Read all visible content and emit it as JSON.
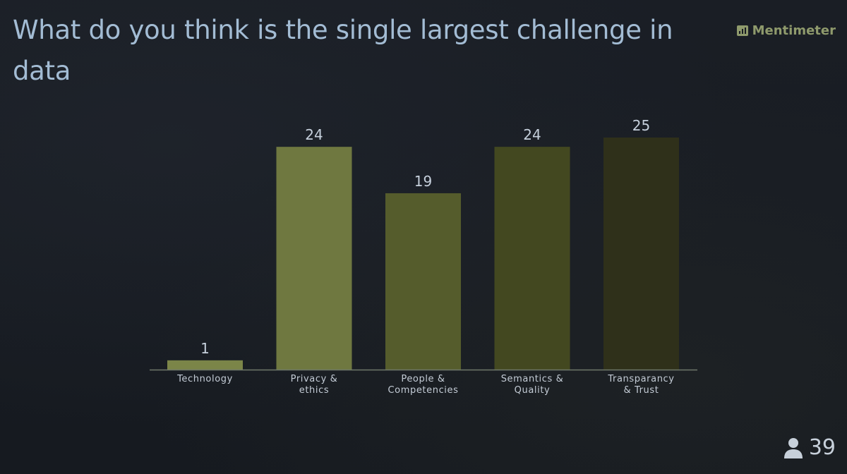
{
  "slide": {
    "title": "What do you think is the single largest challenge in data",
    "brand": "Mentimeter",
    "participant_count": "39",
    "icons": {
      "brand": "bar-chart-logo-icon",
      "participants": "person-icon"
    }
  },
  "chart_data": {
    "type": "bar",
    "title": "",
    "xlabel": "",
    "ylabel": "",
    "categories": [
      [
        "Technology"
      ],
      [
        "Privacy &",
        "ethics"
      ],
      [
        "People &",
        "Competencies"
      ],
      [
        "Semantics &",
        "Quality"
      ],
      [
        "Transparancy",
        "& Trust"
      ]
    ],
    "values": [
      1,
      24,
      19,
      24,
      25
    ],
    "colors": [
      "#7b8548",
      "#6f7840",
      "#555c2c",
      "#434820",
      "#2f301a"
    ],
    "ylim": [
      0,
      25
    ],
    "grid": false,
    "legend": "none",
    "data_labels": true
  }
}
